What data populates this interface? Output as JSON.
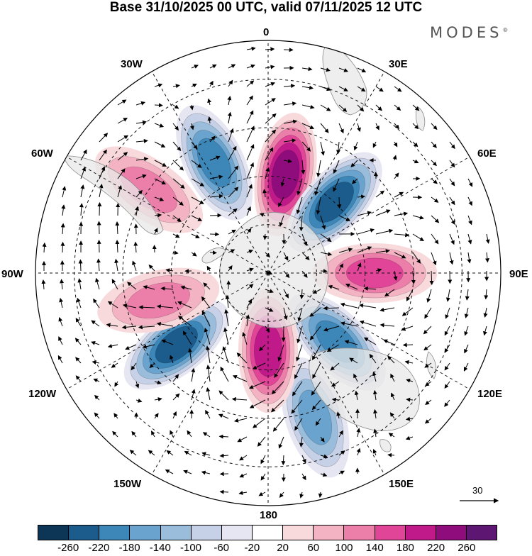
{
  "title": "Base 31/10/2025 00 UTC, valid 07/11/2025 12 UTC",
  "brand": {
    "text": "MODES",
    "mark": "®"
  },
  "longitude_labels": {
    "lon_0": "0",
    "lon_30e": "30E",
    "lon_60e": "60E",
    "lon_90e": "90E",
    "lon_120e": "120E",
    "lon_150e": "150E",
    "lon_180": "180",
    "lon_150w": "150W",
    "lon_120w": "120W",
    "lon_90w": "90W",
    "lon_60w": "60W",
    "lon_30w": "30W"
  },
  "reference_vector": {
    "value": "30"
  },
  "colorbar": {
    "colors": [
      "#0d3556",
      "#1b5c8c",
      "#3d86b8",
      "#6aa3cd",
      "#9bbddc",
      "#c6d0e6",
      "#e6e6f2",
      "#ffffff",
      "#f8d9dc",
      "#f4b3c3",
      "#ec7eaa",
      "#e04598",
      "#c01a8a",
      "#8e0c7c",
      "#5e1673"
    ],
    "ticks": [
      "-260",
      "-220",
      "-180",
      "-140",
      "-100",
      "-60",
      "-20",
      "20",
      "60",
      "100",
      "140",
      "180",
      "220",
      "260"
    ]
  },
  "anomaly_centers": [
    {
      "name": "anomaly-positive-0e",
      "lon": 10,
      "colat": 31,
      "value": 220
    },
    {
      "name": "anomaly-negative-40e",
      "lon": 43,
      "colat": 30,
      "value": -240
    },
    {
      "name": "anomaly-positive-90e",
      "lon": 90,
      "colat": 33,
      "value": 160
    },
    {
      "name": "anomaly-negative-135e",
      "lon": 135,
      "colat": 30,
      "value": -200
    },
    {
      "name": "anomaly-negative-160e",
      "lon": 162,
      "colat": 47,
      "value": -160
    },
    {
      "name": "anomaly-positive-180",
      "lon": 180,
      "colat": 24,
      "value": 200
    },
    {
      "name": "anomaly-negative-125w",
      "lon": -128,
      "colat": 36,
      "value": -220
    },
    {
      "name": "anomaly-positive-100w",
      "lon": -104,
      "colat": 35,
      "value": 120
    },
    {
      "name": "anomaly-positive-55w",
      "lon": -55,
      "colat": 45,
      "value": 120
    },
    {
      "name": "anomaly-negative-25w",
      "lon": -26,
      "colat": 38,
      "value": -180
    }
  ]
}
